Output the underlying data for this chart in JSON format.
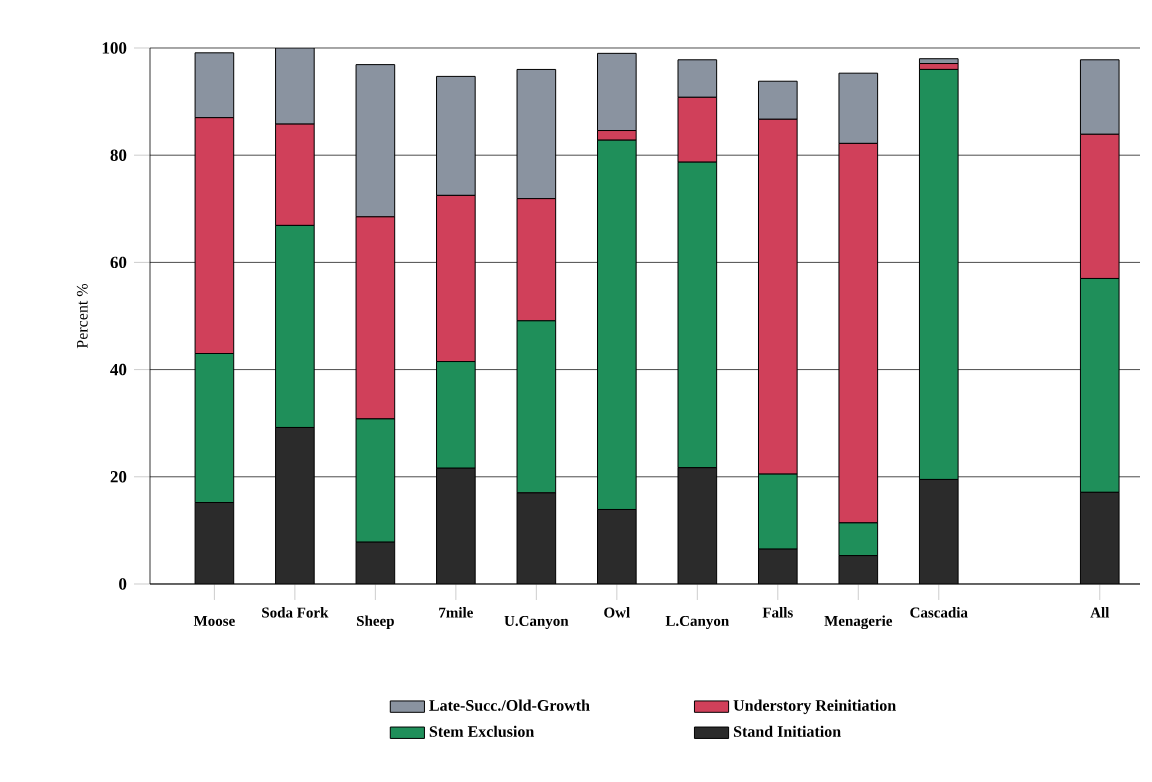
{
  "chart_data": {
    "type": "bar",
    "stacked": true,
    "ylabel": "Percent %",
    "categories": [
      "Moose",
      "Soda Fork",
      "Sheep",
      "7mile",
      "U.Canyon",
      "Owl",
      "L.Canyon",
      "Falls",
      "Menagerie",
      "Cascadia",
      null,
      "All"
    ],
    "series": [
      {
        "name": "Stand Initiation",
        "color": "#2b2b2b",
        "values": [
          15.2,
          29.2,
          7.8,
          21.6,
          17.0,
          13.9,
          21.7,
          6.5,
          5.3,
          19.5,
          null,
          17.1
        ]
      },
      {
        "name": "Stem Exclusion",
        "color": "#1f8f5a",
        "values": [
          27.8,
          37.7,
          23.0,
          19.9,
          32.1,
          68.9,
          57.0,
          14.0,
          6.1,
          76.5,
          null,
          39.9
        ]
      },
      {
        "name": "Understory Reinitiation",
        "color": "#d0405a",
        "values": [
          44.0,
          18.9,
          37.7,
          31.0,
          22.8,
          1.8,
          12.1,
          66.2,
          70.8,
          1.1,
          null,
          26.9
        ]
      },
      {
        "name": "Late-Succ./Old-Growth",
        "color": "#8a93a0",
        "values": [
          12.1,
          14.2,
          28.4,
          22.2,
          24.1,
          14.4,
          7.0,
          7.1,
          13.1,
          0.9,
          null,
          13.9
        ]
      }
    ],
    "ylim": [
      0,
      100
    ],
    "yticks": [
      0,
      20,
      40,
      60,
      80,
      100
    ],
    "grid": "y",
    "legend": "bottom"
  }
}
